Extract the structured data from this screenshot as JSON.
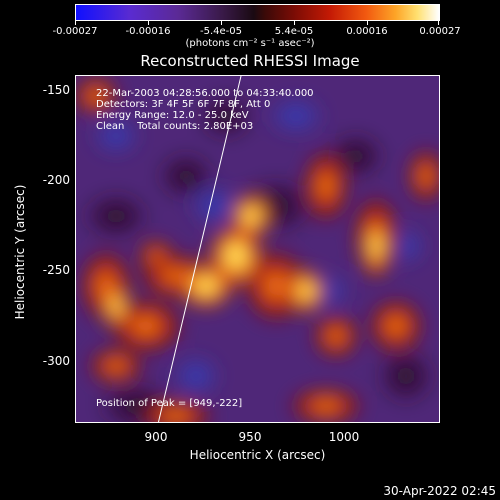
{
  "colorbar": {
    "tick_labels": [
      "-0.00027",
      "-0.00016",
      "-5.4e-05",
      "5.4e-05",
      "0.00016",
      "0.00027"
    ],
    "unit_label": "(photons cm⁻² s⁻¹ asec⁻²)"
  },
  "title": "Reconstructed RHESSI Image",
  "annotations": {
    "time_range": "22-Mar-2003 04:28:56.000 to 04:33:40.000",
    "detectors": "Detectors: 3F 4F 5F 6F 7F 8F, Att 0",
    "energy": "Energy Range: 12.0 - 25.0 keV",
    "clean": "Clean    Total counts: 2.80E+03",
    "peak": "Position of Peak = [949,-222]"
  },
  "axes": {
    "xlabel": "Heliocentric X (arcsec)",
    "ylabel": "Heliocentric Y (arcsec)",
    "xticks": [
      "900",
      "950",
      "1000"
    ],
    "yticks": [
      "-150",
      "-200",
      "-250",
      "-300"
    ],
    "xlim": [
      858,
      1042
    ],
    "ylim": [
      -335,
      -143
    ]
  },
  "timestamp": "30-Apr-2022 02:45",
  "colors": {
    "background": "#000000",
    "text": "#ffffff"
  }
}
